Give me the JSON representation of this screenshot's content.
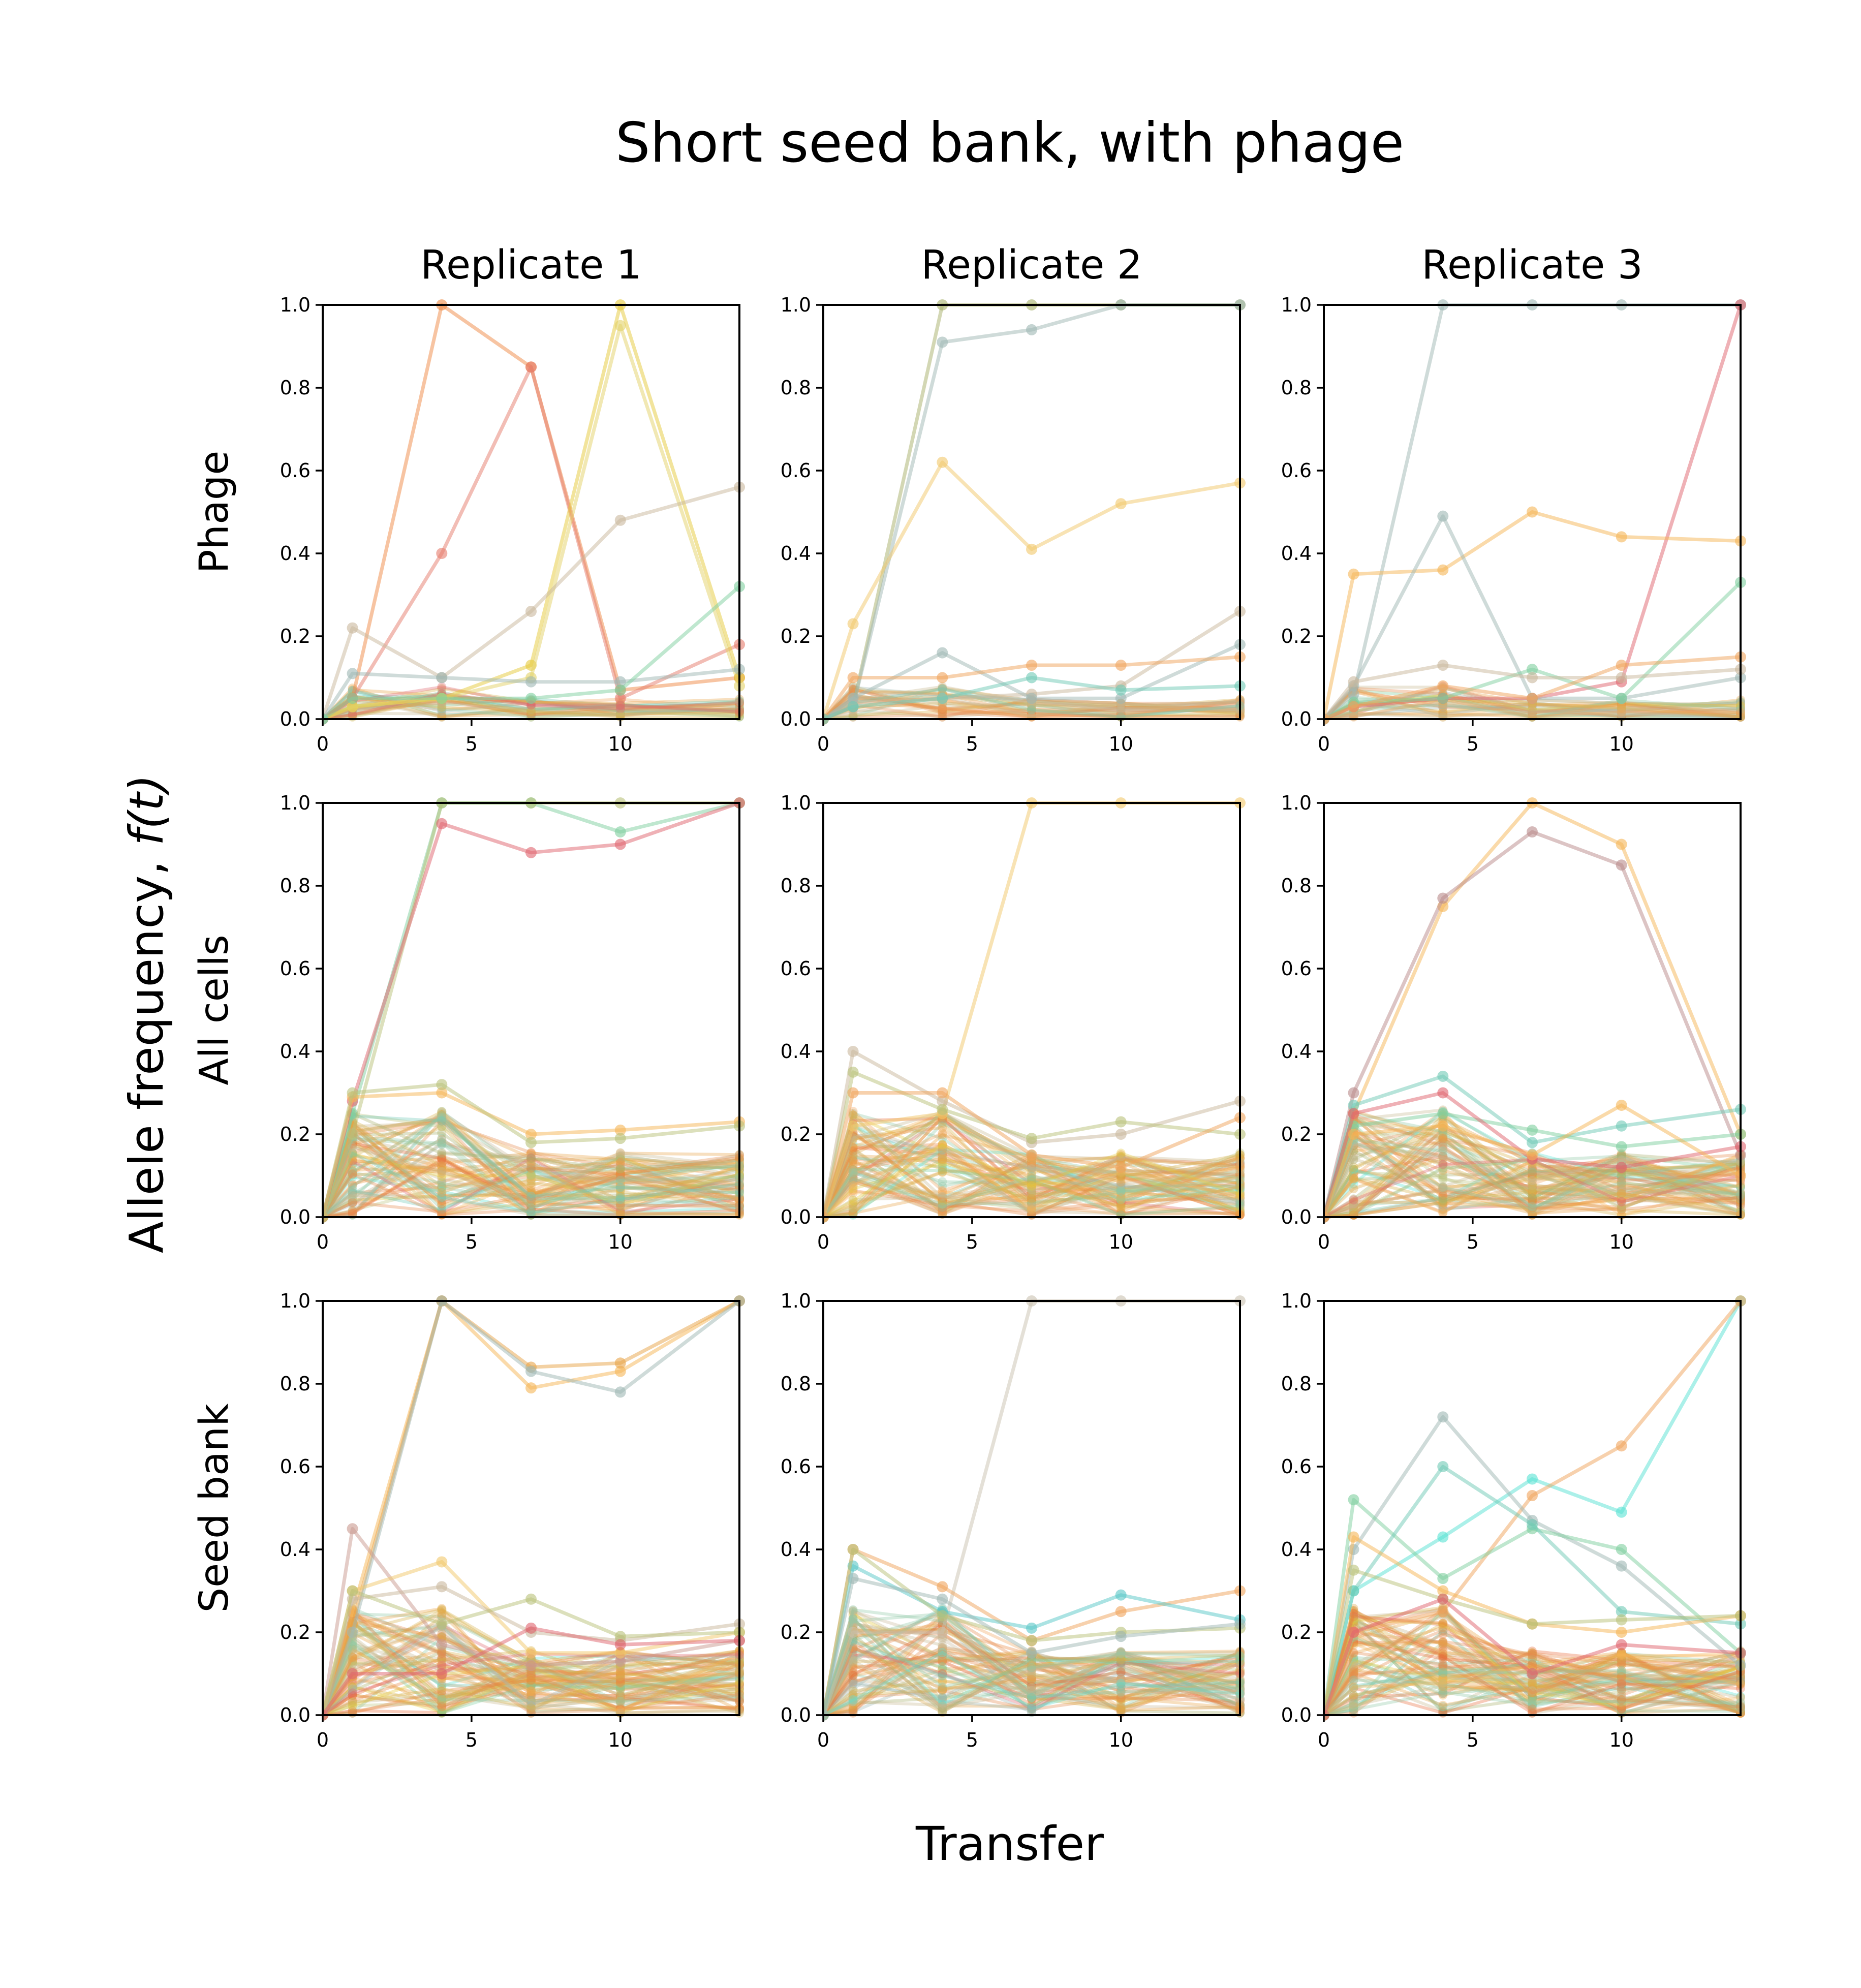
{
  "title": "Short seed bank, with phage",
  "xlabel": "Transfer",
  "ylabel_text": "Allele frequency, ",
  "ylabel_math": "f(t)",
  "columns": [
    "Replicate 1",
    "Replicate 2",
    "Replicate 3"
  ],
  "rows": [
    "Phage",
    "All cells",
    "Seed bank"
  ],
  "colors": {
    "palette": [
      "#e8853d",
      "#e0646e",
      "#e6c93a",
      "#c9b79c",
      "#9fb8b4",
      "#7fcf9f",
      "#f5b556",
      "#e86a3a",
      "#d9a441",
      "#6fc9b6",
      "#b9c27a",
      "#f0a35c",
      "#58e2d4",
      "#a7b06a"
    ],
    "background_band": [
      "#e8a447",
      "#d6b24a",
      "#8fc9a6",
      "#e58a4e",
      "#c5b88e"
    ]
  },
  "chart_data": [
    {
      "type": "line",
      "row": "Phage",
      "column": "Replicate 1",
      "x": [
        0,
        1,
        4,
        7,
        10,
        14
      ],
      "xlim": [
        0,
        14
      ],
      "ylim": [
        0,
        1
      ],
      "xticks": [
        0,
        5,
        10
      ],
      "yticks": [
        0.0,
        0.2,
        0.4,
        0.6,
        0.8,
        1.0
      ],
      "series": [
        {
          "color": "#ef8a45",
          "values": [
            0,
            0.05,
            1.0,
            0.85,
            0.07,
            0.1
          ]
        },
        {
          "color": "#e67b6c",
          "values": [
            0,
            0.05,
            0.4,
            0.85,
            0.05,
            0.18
          ]
        },
        {
          "color": "#e6c93a",
          "values": [
            0,
            0.03,
            0.05,
            0.13,
            1.0,
            0.1
          ]
        },
        {
          "color": "#e3d267",
          "values": [
            0,
            0.03,
            0.05,
            0.1,
            0.95,
            0.08
          ]
        },
        {
          "color": "#c9b79c",
          "values": [
            0,
            0.22,
            0.1,
            0.26,
            0.48,
            0.56
          ]
        },
        {
          "color": "#9fb8b4",
          "values": [
            0,
            0.11,
            0.1,
            0.09,
            0.09,
            0.12
          ]
        },
        {
          "color": "#7fcf9f",
          "values": [
            0,
            0.05,
            0.05,
            0.05,
            0.07,
            0.32
          ]
        }
      ]
    },
    {
      "type": "line",
      "row": "Phage",
      "column": "Replicate 2",
      "x": [
        0,
        1,
        4,
        7,
        10,
        14
      ],
      "xlim": [
        0,
        14
      ],
      "ylim": [
        0,
        1
      ],
      "xticks": [
        0,
        5,
        10
      ],
      "yticks": [
        0.0,
        0.2,
        0.4,
        0.6,
        0.8,
        1.0
      ],
      "series": [
        {
          "color": "#a7b06a",
          "values": [
            0,
            0.03,
            1.0,
            1.0,
            1.0,
            1.0
          ]
        },
        {
          "color": "#9fb8b4",
          "values": [
            0,
            0.03,
            0.91,
            0.94,
            1.0,
            1.0
          ]
        },
        {
          "color": "#f2c86a",
          "values": [
            0,
            0.23,
            0.62,
            0.41,
            0.52,
            0.57
          ]
        },
        {
          "color": "#c9b79c",
          "values": [
            0,
            0.04,
            0.05,
            0.06,
            0.08,
            0.26
          ]
        },
        {
          "color": "#9fb8b4",
          "values": [
            0,
            0.05,
            0.16,
            0.05,
            0.05,
            0.18
          ]
        },
        {
          "color": "#f0a35c",
          "values": [
            0,
            0.1,
            0.1,
            0.13,
            0.13,
            0.15
          ]
        },
        {
          "color": "#6fc9b6",
          "values": [
            0,
            0.03,
            0.05,
            0.1,
            0.07,
            0.08
          ]
        }
      ]
    },
    {
      "type": "line",
      "row": "Phage",
      "column": "Replicate 3",
      "x": [
        0,
        1,
        4,
        7,
        10,
        14
      ],
      "xlim": [
        0,
        14
      ],
      "ylim": [
        0,
        1
      ],
      "xticks": [
        0,
        5,
        10
      ],
      "yticks": [
        0.0,
        0.2,
        0.4,
        0.6,
        0.8,
        1.0
      ],
      "series": [
        {
          "color": "#9fb8b4",
          "values": [
            0,
            0.06,
            1.0,
            1.0,
            1.0,
            1.0
          ]
        },
        {
          "color": "#e0646e",
          "values": [
            0,
            0.03,
            0.05,
            0.05,
            0.09,
            1.0
          ]
        },
        {
          "color": "#f5b556",
          "values": [
            0,
            0.35,
            0.36,
            0.5,
            0.44,
            0.43
          ]
        },
        {
          "color": "#9fb8b4",
          "values": [
            0,
            0.08,
            0.49,
            0.05,
            0.05,
            0.1
          ]
        },
        {
          "color": "#7fcf9f",
          "values": [
            0,
            0.04,
            0.05,
            0.12,
            0.05,
            0.33
          ]
        },
        {
          "color": "#c9b79c",
          "values": [
            0,
            0.09,
            0.13,
            0.1,
            0.1,
            0.12
          ]
        },
        {
          "color": "#f0a35c",
          "values": [
            0,
            0.03,
            0.08,
            0.05,
            0.13,
            0.15
          ]
        }
      ]
    },
    {
      "type": "line",
      "row": "All cells",
      "column": "Replicate 1",
      "x": [
        0,
        1,
        4,
        7,
        10,
        14
      ],
      "xlim": [
        0,
        14
      ],
      "ylim": [
        0,
        1
      ],
      "xticks": [
        0,
        5,
        10
      ],
      "yticks": [
        0.0,
        0.2,
        0.4,
        0.6,
        0.8,
        1.0
      ],
      "series": [
        {
          "color": "#7fcf9f",
          "values": [
            0,
            0.25,
            1.0,
            1.0,
            0.93,
            1.0
          ]
        },
        {
          "color": "#b9c27a",
          "values": [
            0,
            0.2,
            1.0,
            1.0,
            1.0,
            1.0
          ]
        },
        {
          "color": "#e0646e",
          "values": [
            0,
            0.28,
            0.95,
            0.88,
            0.9,
            1.0
          ]
        },
        {
          "color": "#f5b556",
          "values": [
            0,
            0.29,
            0.3,
            0.2,
            0.21,
            0.23
          ]
        },
        {
          "color": "#b9c27a",
          "values": [
            0,
            0.3,
            0.32,
            0.18,
            0.19,
            0.22
          ]
        }
      ]
    },
    {
      "type": "line",
      "row": "All cells",
      "column": "Replicate 2",
      "x": [
        0,
        1,
        4,
        7,
        10,
        14
      ],
      "xlim": [
        0,
        14
      ],
      "ylim": [
        0,
        1
      ],
      "xticks": [
        0,
        5,
        10
      ],
      "yticks": [
        0.0,
        0.2,
        0.4,
        0.6,
        0.8,
        1.0
      ],
      "series": [
        {
          "color": "#f2c86a",
          "values": [
            0,
            0.22,
            0.25,
            1.0,
            1.0,
            1.0
          ]
        },
        {
          "color": "#c9b79c",
          "values": [
            0,
            0.4,
            0.28,
            0.18,
            0.2,
            0.28
          ]
        },
        {
          "color": "#b9c27a",
          "values": [
            0,
            0.35,
            0.26,
            0.19,
            0.23,
            0.2
          ]
        },
        {
          "color": "#f0a35c",
          "values": [
            0,
            0.3,
            0.3,
            0.15,
            0.12,
            0.24
          ]
        }
      ]
    },
    {
      "type": "line",
      "row": "All cells",
      "column": "Replicate 3",
      "x": [
        0,
        1,
        4,
        7,
        10,
        14
      ],
      "xlim": [
        0,
        14
      ],
      "ylim": [
        0,
        1
      ],
      "xticks": [
        0,
        5,
        10
      ],
      "yticks": [
        0.0,
        0.2,
        0.4,
        0.6,
        0.8,
        1.0
      ],
      "series": [
        {
          "color": "#f5b556",
          "values": [
            0,
            0.25,
            0.75,
            1.0,
            0.9,
            0.2
          ]
        },
        {
          "color": "#b98a8a",
          "values": [
            0,
            0.3,
            0.77,
            0.93,
            0.85,
            0.15
          ]
        },
        {
          "color": "#6fc9b6",
          "values": [
            0,
            0.27,
            0.34,
            0.18,
            0.22,
            0.26
          ]
        },
        {
          "color": "#7fcf9f",
          "values": [
            0,
            0.22,
            0.25,
            0.21,
            0.17,
            0.2
          ]
        },
        {
          "color": "#e0646e",
          "values": [
            0,
            0.25,
            0.3,
            0.14,
            0.12,
            0.17
          ]
        },
        {
          "color": "#f5b556",
          "values": [
            0,
            0.2,
            0.22,
            0.15,
            0.27,
            0.1
          ]
        }
      ]
    },
    {
      "type": "line",
      "row": "Seed bank",
      "column": "Replicate 1",
      "x": [
        0,
        1,
        4,
        7,
        10,
        14
      ],
      "xlim": [
        0,
        14
      ],
      "ylim": [
        0,
        1
      ],
      "xticks": [
        0,
        5,
        10
      ],
      "yticks": [
        0.0,
        0.2,
        0.4,
        0.6,
        0.8,
        1.0
      ],
      "series": [
        {
          "color": "#f5b556",
          "values": [
            0,
            0.25,
            1.0,
            0.79,
            0.83,
            1.0
          ]
        },
        {
          "color": "#e8a447",
          "values": [
            0,
            0.22,
            1.0,
            0.84,
            0.85,
            1.0
          ]
        },
        {
          "color": "#9fb8b4",
          "values": [
            0,
            0.2,
            1.0,
            0.83,
            0.78,
            1.0
          ]
        },
        {
          "color": "#c99a8f",
          "values": [
            0,
            0.45,
            0.17,
            0.12,
            0.13,
            0.18
          ]
        },
        {
          "color": "#f2c86a",
          "values": [
            0,
            0.3,
            0.37,
            0.15,
            0.15,
            0.2
          ]
        },
        {
          "color": "#c9b79c",
          "values": [
            0,
            0.28,
            0.31,
            0.2,
            0.18,
            0.22
          ]
        },
        {
          "color": "#b9c27a",
          "values": [
            0,
            0.3,
            0.22,
            0.28,
            0.19,
            0.2
          ]
        },
        {
          "color": "#e0646e",
          "values": [
            0,
            0.1,
            0.1,
            0.21,
            0.17,
            0.18
          ]
        }
      ]
    },
    {
      "type": "line",
      "row": "Seed bank",
      "column": "Replicate 2",
      "x": [
        0,
        1,
        4,
        7,
        10,
        14
      ],
      "xlim": [
        0,
        14
      ],
      "ylim": [
        0,
        1
      ],
      "xticks": [
        0,
        5,
        10
      ],
      "yticks": [
        0.0,
        0.2,
        0.4,
        0.6,
        0.8,
        1.0
      ],
      "series": [
        {
          "color": "#c9c2b0",
          "values": [
            0,
            0.2,
            0.2,
            1.0,
            1.0,
            1.0
          ]
        },
        {
          "color": "#f0a35c",
          "values": [
            0,
            0.4,
            0.31,
            0.18,
            0.25,
            0.3
          ]
        },
        {
          "color": "#58c7c7",
          "values": [
            0,
            0.36,
            0.25,
            0.21,
            0.29,
            0.23
          ]
        },
        {
          "color": "#b9c27a",
          "values": [
            0,
            0.4,
            0.24,
            0.18,
            0.2,
            0.21
          ]
        },
        {
          "color": "#9fb8b4",
          "values": [
            0,
            0.33,
            0.28,
            0.15,
            0.19,
            0.22
          ]
        }
      ]
    },
    {
      "type": "line",
      "row": "Seed bank",
      "column": "Replicate 3",
      "x": [
        0,
        1,
        4,
        7,
        10,
        14
      ],
      "xlim": [
        0,
        14
      ],
      "ylim": [
        0,
        1
      ],
      "xticks": [
        0,
        5,
        10
      ],
      "yticks": [
        0.0,
        0.2,
        0.4,
        0.6,
        0.8,
        1.0
      ],
      "series": [
        {
          "color": "#58e2d4",
          "values": [
            0,
            0.3,
            0.43,
            0.57,
            0.49,
            1.0
          ]
        },
        {
          "color": "#f0a35c",
          "values": [
            0,
            0.2,
            0.25,
            0.53,
            0.65,
            1.0
          ]
        },
        {
          "color": "#9fb8b4",
          "values": [
            0,
            0.4,
            0.72,
            0.47,
            0.36,
            0.12
          ]
        },
        {
          "color": "#7fcf9f",
          "values": [
            0,
            0.52,
            0.33,
            0.45,
            0.4,
            0.15
          ]
        },
        {
          "color": "#6fc9b6",
          "values": [
            0,
            0.3,
            0.6,
            0.46,
            0.25,
            0.22
          ]
        },
        {
          "color": "#f5b556",
          "values": [
            0,
            0.43,
            0.3,
            0.22,
            0.2,
            0.24
          ]
        },
        {
          "color": "#b9c27a",
          "values": [
            0,
            0.35,
            0.28,
            0.22,
            0.23,
            0.24
          ]
        },
        {
          "color": "#e0646e",
          "values": [
            0,
            0.2,
            0.28,
            0.1,
            0.17,
            0.15
          ]
        }
      ]
    }
  ]
}
